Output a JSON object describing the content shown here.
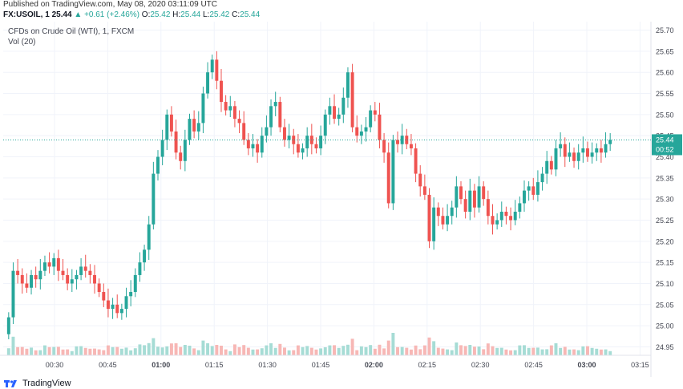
{
  "header": {
    "published": "Published on TradingView.com, May 08, 2020 03:11:09 UTC",
    "symbol": "FX:USOIL, 1",
    "price": "25.44",
    "change": "▲ +0.61 (+2.46%)",
    "o_label": "O:",
    "o_val": "25.42",
    "h_label": "H:",
    "h_val": "25.44",
    "l_label": "L:",
    "l_val": "25.42",
    "c_label": "C:",
    "c_val": "25.44"
  },
  "legend": {
    "title": "CFDs on Crude Oil (WTI), 1, FXCM",
    "volume": "Vol (20)"
  },
  "price_badge": {
    "price": "25.44",
    "countdown": "00:52"
  },
  "footer": {
    "brand": "TradingView"
  },
  "colors": {
    "up": "#26a69a",
    "down": "#ef5350",
    "up_vol": "#a6dcd5",
    "down_vol": "#f7b7b5",
    "grid": "#f0f3fa"
  },
  "chart_data": {
    "type": "candlestick",
    "ylim": [
      24.93,
      25.72
    ],
    "y_ticks": [
      "25.70",
      "25.65",
      "25.60",
      "25.55",
      "25.50",
      "25.45",
      "25.40",
      "25.35",
      "25.30",
      "25.25",
      "25.20",
      "25.15",
      "25.10",
      "25.05",
      "25.00",
      "24.95"
    ],
    "x_ticks": [
      "00:30",
      "00:45",
      "01:00",
      "01:15",
      "01:30",
      "01:45",
      "02:00",
      "02:15",
      "02:30",
      "02:45",
      "03:00",
      "03:15"
    ],
    "last_price": 25.44,
    "closes": [
      25.02,
      25.13,
      25.12,
      25.1,
      25.09,
      25.12,
      25.11,
      25.13,
      25.15,
      25.14,
      25.16,
      25.13,
      25.12,
      25.1,
      25.11,
      25.12,
      25.14,
      25.13,
      25.12,
      25.1,
      25.08,
      25.06,
      25.04,
      25.05,
      25.03,
      25.04,
      25.07,
      25.08,
      25.12,
      25.15,
      25.18,
      25.24,
      25.36,
      25.4,
      25.44,
      25.5,
      25.46,
      25.41,
      25.39,
      25.44,
      25.49,
      25.46,
      25.48,
      25.55,
      25.6,
      25.63,
      25.58,
      25.53,
      25.51,
      25.52,
      25.49,
      25.48,
      25.44,
      25.42,
      25.43,
      25.41,
      25.45,
      25.47,
      25.52,
      25.53,
      25.47,
      25.44,
      25.45,
      25.43,
      25.41,
      25.42,
      25.45,
      25.43,
      25.42,
      25.45,
      25.5,
      25.52,
      25.49,
      25.5,
      25.54,
      25.6,
      25.47,
      25.45,
      25.46,
      25.47,
      25.51,
      25.5,
      25.44,
      25.41,
      25.29,
      25.44,
      25.43,
      25.45,
      25.43,
      25.42,
      25.36,
      25.33,
      25.31,
      25.2,
      25.28,
      25.26,
      25.24,
      25.26,
      25.28,
      25.33,
      25.3,
      25.27,
      25.32,
      25.28,
      25.33,
      25.3,
      25.26,
      25.24,
      25.25,
      25.27,
      25.26,
      25.25,
      25.27,
      25.29,
      25.32,
      25.33,
      25.31,
      25.34,
      25.36,
      25.39,
      25.37,
      25.42,
      25.43,
      25.4,
      25.41,
      25.39,
      25.41,
      25.42,
      25.4,
      25.41,
      25.42,
      25.41,
      25.43,
      25.44
    ]
  }
}
